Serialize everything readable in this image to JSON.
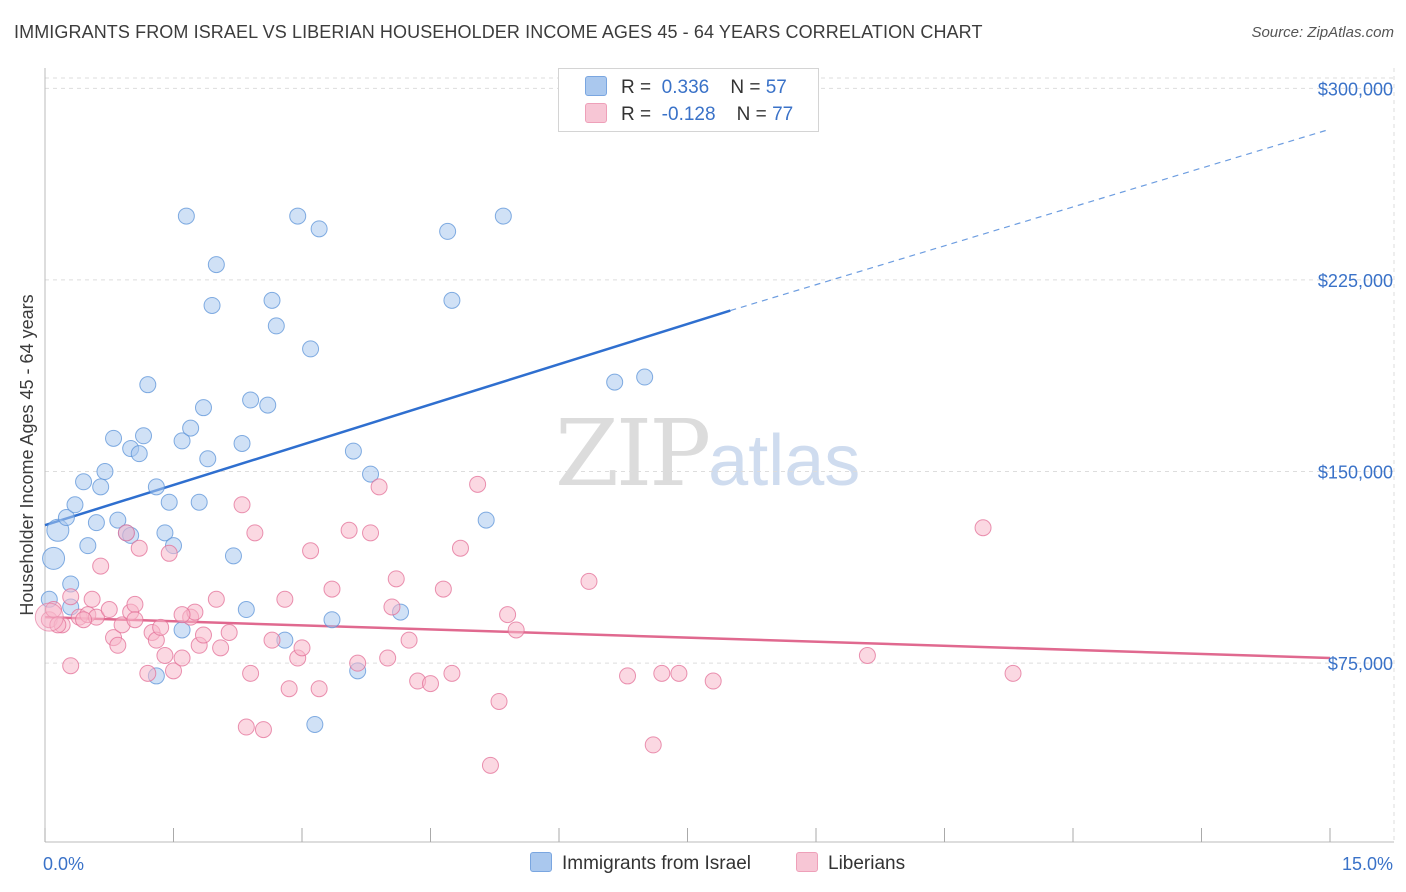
{
  "title": "IMMIGRANTS FROM ISRAEL VS LIBERIAN HOUSEHOLDER INCOME AGES 45 - 64 YEARS CORRELATION CHART",
  "source": "Source: ZipAtlas.com",
  "watermark": {
    "zip": "ZIP",
    "atlas": "atlas"
  },
  "legend": {
    "rows": [
      {
        "r_label": "R =",
        "r_value": "0.336",
        "n_label": "N =",
        "n_value": "57",
        "color": "#aac8ee"
      },
      {
        "r_label": "R =",
        "r_value": "-0.128",
        "n_label": "N =",
        "n_value": "77",
        "color": "#f7b8cb"
      }
    ]
  },
  "bottom_legend": [
    {
      "label": "Immigrants from Israel",
      "color": "#aac8ee"
    },
    {
      "label": "Liberians",
      "color": "#f7b8cb"
    }
  ],
  "chart_data": {
    "type": "scatter",
    "title": "IMMIGRANTS FROM ISRAEL VS LIBERIAN HOUSEHOLDER INCOME AGES 45 - 64 YEARS CORRELATION CHART",
    "xlabel": "",
    "ylabel": "Householder Income Ages 45 - 64 years",
    "x_tick_labels": [
      "0.0%",
      "15.0%"
    ],
    "y_tick_labels": [
      "$75,000",
      "$150,000",
      "$225,000",
      "$300,000"
    ],
    "y_ticks": [
      75000,
      150000,
      225000,
      300000
    ],
    "xlim": [
      0,
      15
    ],
    "ylim": [
      5000,
      315000
    ],
    "grid": true,
    "legend_position": "top-center",
    "series": [
      {
        "name": "Immigrants from Israel",
        "color": "#5b93d8",
        "fill": "#aac8ee",
        "trend": {
          "x": [
            0.0,
            8.0
          ],
          "y": [
            129000,
            213000
          ],
          "dashed_to": [
            15.0,
            284000
          ]
        },
        "points": [
          [
            0.1,
            116000
          ],
          [
            0.15,
            127000
          ],
          [
            0.25,
            132000
          ],
          [
            0.3,
            106000
          ],
          [
            0.35,
            137000
          ],
          [
            0.45,
            146000
          ],
          [
            0.5,
            121000
          ],
          [
            0.6,
            130000
          ],
          [
            0.65,
            144000
          ],
          [
            0.7,
            150000
          ],
          [
            0.8,
            163000
          ],
          [
            0.85,
            131000
          ],
          [
            0.95,
            126000
          ],
          [
            1.0,
            125000
          ],
          [
            1.0,
            159000
          ],
          [
            1.1,
            157000
          ],
          [
            1.15,
            164000
          ],
          [
            1.2,
            184000
          ],
          [
            1.3,
            144000
          ],
          [
            1.3,
            70000
          ],
          [
            1.4,
            126000
          ],
          [
            1.45,
            138000
          ],
          [
            1.5,
            121000
          ],
          [
            1.6,
            88000
          ],
          [
            1.6,
            162000
          ],
          [
            1.65,
            250000
          ],
          [
            1.7,
            167000
          ],
          [
            1.8,
            138000
          ],
          [
            1.85,
            175000
          ],
          [
            1.9,
            155000
          ],
          [
            1.95,
            215000
          ],
          [
            2.0,
            231000
          ],
          [
            2.2,
            117000
          ],
          [
            2.3,
            161000
          ],
          [
            2.35,
            96000
          ],
          [
            2.4,
            178000
          ],
          [
            2.6,
            176000
          ],
          [
            2.65,
            217000
          ],
          [
            2.7,
            207000
          ],
          [
            2.8,
            84000
          ],
          [
            2.95,
            250000
          ],
          [
            3.1,
            198000
          ],
          [
            3.15,
            51000
          ],
          [
            3.2,
            245000
          ],
          [
            3.35,
            92000
          ],
          [
            3.6,
            158000
          ],
          [
            3.65,
            72000
          ],
          [
            3.8,
            149000
          ],
          [
            4.15,
            95000
          ],
          [
            4.7,
            244000
          ],
          [
            4.75,
            217000
          ],
          [
            5.15,
            131000
          ],
          [
            5.35,
            250000
          ],
          [
            6.65,
            185000
          ],
          [
            7.0,
            187000
          ],
          [
            0.05,
            100000
          ],
          [
            0.3,
            97000
          ]
        ]
      },
      {
        "name": "Liberians",
        "color": "#e36f97",
        "fill": "#f7b8cb",
        "trend": {
          "x": [
            0.0,
            15.0
          ],
          "y": [
            93000,
            77000
          ]
        },
        "points": [
          [
            0.05,
            92000
          ],
          [
            0.1,
            96000
          ],
          [
            0.2,
            90000
          ],
          [
            0.3,
            101000
          ],
          [
            0.3,
            74000
          ],
          [
            0.4,
            93000
          ],
          [
            0.5,
            94000
          ],
          [
            0.55,
            100000
          ],
          [
            0.6,
            93000
          ],
          [
            0.65,
            113000
          ],
          [
            0.75,
            96000
          ],
          [
            0.8,
            85000
          ],
          [
            0.85,
            82000
          ],
          [
            0.9,
            90000
          ],
          [
            0.95,
            126000
          ],
          [
            1.0,
            95000
          ],
          [
            1.05,
            98000
          ],
          [
            1.1,
            120000
          ],
          [
            1.2,
            71000
          ],
          [
            1.25,
            87000
          ],
          [
            1.3,
            84000
          ],
          [
            1.35,
            89000
          ],
          [
            1.4,
            78000
          ],
          [
            1.45,
            118000
          ],
          [
            1.5,
            72000
          ],
          [
            1.6,
            77000
          ],
          [
            1.7,
            93000
          ],
          [
            1.75,
            95000
          ],
          [
            1.8,
            82000
          ],
          [
            1.85,
            86000
          ],
          [
            2.0,
            100000
          ],
          [
            2.05,
            81000
          ],
          [
            2.15,
            87000
          ],
          [
            2.3,
            137000
          ],
          [
            2.35,
            50000
          ],
          [
            2.4,
            71000
          ],
          [
            2.45,
            126000
          ],
          [
            2.55,
            49000
          ],
          [
            2.65,
            84000
          ],
          [
            2.8,
            100000
          ],
          [
            2.85,
            65000
          ],
          [
            2.95,
            77000
          ],
          [
            3.0,
            81000
          ],
          [
            3.1,
            119000
          ],
          [
            3.2,
            65000
          ],
          [
            3.35,
            104000
          ],
          [
            3.55,
            127000
          ],
          [
            3.65,
            75000
          ],
          [
            3.8,
            126000
          ],
          [
            3.9,
            144000
          ],
          [
            4.0,
            77000
          ],
          [
            4.05,
            97000
          ],
          [
            4.1,
            108000
          ],
          [
            4.25,
            84000
          ],
          [
            4.35,
            68000
          ],
          [
            4.5,
            67000
          ],
          [
            4.65,
            104000
          ],
          [
            4.75,
            71000
          ],
          [
            4.85,
            120000
          ],
          [
            5.05,
            145000
          ],
          [
            5.2,
            35000
          ],
          [
            5.3,
            60000
          ],
          [
            5.4,
            94000
          ],
          [
            5.5,
            88000
          ],
          [
            6.35,
            107000
          ],
          [
            6.8,
            70000
          ],
          [
            7.1,
            43000
          ],
          [
            7.2,
            71000
          ],
          [
            7.4,
            71000
          ],
          [
            7.8,
            68000
          ],
          [
            9.6,
            78000
          ],
          [
            10.95,
            128000
          ],
          [
            11.3,
            71000
          ],
          [
            0.15,
            90000
          ],
          [
            0.45,
            92000
          ],
          [
            1.05,
            92000
          ],
          [
            1.6,
            94000
          ]
        ]
      }
    ]
  }
}
